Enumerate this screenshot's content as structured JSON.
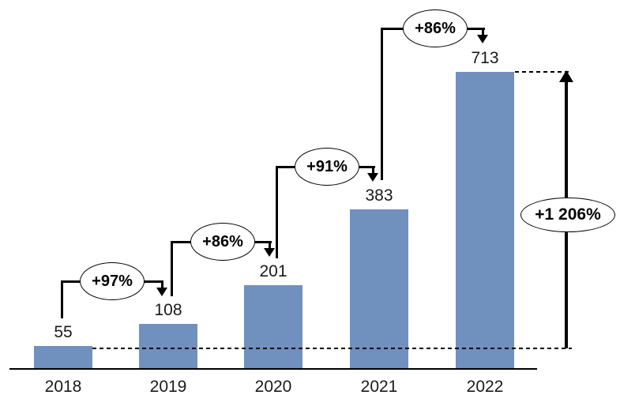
{
  "chart_data": {
    "type": "bar",
    "title": "",
    "categories": [
      "2018",
      "2019",
      "2020",
      "2021",
      "2022"
    ],
    "values": [
      55,
      108,
      201,
      383,
      713
    ],
    "bar_color": "#7090be",
    "growth_annotations": [
      {
        "from": "2018",
        "to": "2019",
        "label": "+97%"
      },
      {
        "from": "2019",
        "to": "2020",
        "label": "+86%"
      },
      {
        "from": "2020",
        "to": "2021",
        "label": "+91%"
      },
      {
        "from": "2021",
        "to": "2022",
        "label": "+86%"
      }
    ],
    "total_annotation": {
      "from": "2018",
      "to": "2022",
      "label": "+1 206%"
    },
    "layout_hints": {
      "y_axis_visible": false,
      "gridlines": false,
      "data_labels": "above bars",
      "dashed_reference_levels": [
        55,
        713
      ]
    }
  },
  "colors": {
    "bar": "#7090be",
    "line": "#000000",
    "text": "#1a1a1a",
    "oval_fill": "#ffffff"
  }
}
